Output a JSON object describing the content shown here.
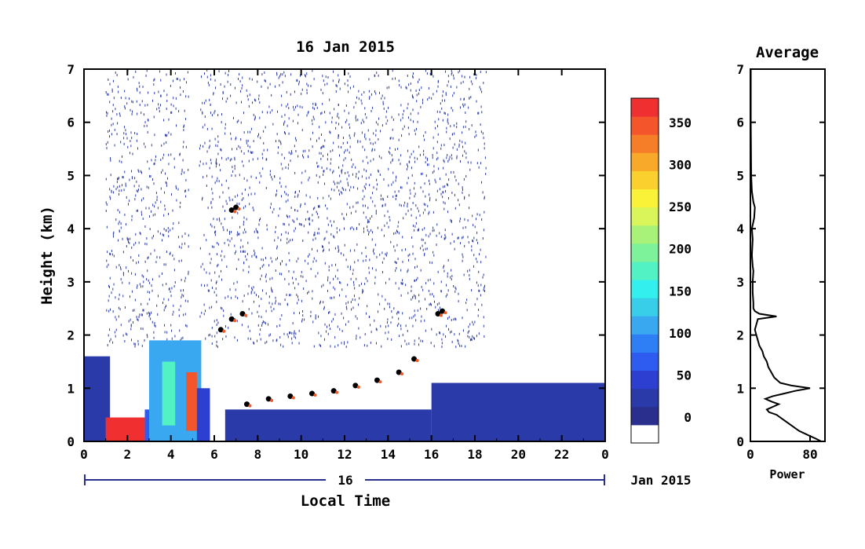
{
  "chart_data": [
    {
      "type": "heatmap",
      "title": "16 Jan 2015",
      "xlabel": "Local Time",
      "ylabel": "Height (km)",
      "x_ticks": [
        "0",
        "2",
        "4",
        "6",
        "8",
        "10",
        "12",
        "14",
        "16",
        "18",
        "20",
        "22",
        "0"
      ],
      "y_ticks": [
        "0",
        "1",
        "2",
        "3",
        "4",
        "5",
        "6",
        "7"
      ],
      "xlim": [
        0,
        24
      ],
      "ylim": [
        0,
        7
      ],
      "date_bar": {
        "day_label": "16",
        "month_label": "Jan 2015"
      },
      "colorbar": {
        "labels": [
          "0",
          "50",
          "100",
          "150",
          "200",
          "250",
          "300",
          "350"
        ],
        "range": [
          -30,
          380
        ],
        "colors": [
          "#ffffff",
          "#2a2e8c",
          "#2a3aa8",
          "#2c3fd0",
          "#2e5cf0",
          "#2e7ff5",
          "#3aa8f0",
          "#38cde8",
          "#33f0ee",
          "#52f2c4",
          "#7ef29a",
          "#a8f27a",
          "#d9f55a",
          "#f9f238",
          "#f9d02e",
          "#f9a92a",
          "#f77e28",
          "#f5552a",
          "#f03030"
        ]
      },
      "regions": [
        {
          "x0": 0.0,
          "x1": 1.2,
          "y0": 0.0,
          "y1": 1.6,
          "v": 20
        },
        {
          "x0": 1.0,
          "x1": 2.8,
          "y0": 0.0,
          "y1": 0.45,
          "v": 360
        },
        {
          "x0": 2.8,
          "x1": 3.3,
          "y0": 0.0,
          "y1": 0.6,
          "v": 60
        },
        {
          "x0": 3.0,
          "x1": 5.4,
          "y0": 0.0,
          "y1": 1.9,
          "v": 110
        },
        {
          "x0": 3.6,
          "x1": 4.2,
          "y0": 0.3,
          "y1": 1.5,
          "v": 180
        },
        {
          "x0": 4.7,
          "x1": 5.2,
          "y0": 0.2,
          "y1": 1.3,
          "v": 340
        },
        {
          "x0": 5.2,
          "x1": 5.8,
          "y0": 0.0,
          "y1": 1.0,
          "v": 40
        },
        {
          "x0": 6.5,
          "x1": 16.0,
          "y0": 0.0,
          "y1": 0.6,
          "v": 20
        },
        {
          "x0": 16.0,
          "x1": 24.0,
          "y0": 0.0,
          "y1": 1.1,
          "v": 20
        }
      ],
      "cloud_layers": [
        {
          "x": [
            7.5,
            8.5,
            9.5,
            10.5,
            11.5,
            12.5,
            13.5,
            14.5,
            15.2
          ],
          "y": [
            0.7,
            0.8,
            0.85,
            0.9,
            0.95,
            1.05,
            1.15,
            1.3,
            1.55
          ]
        },
        {
          "x": [
            6.3,
            6.8,
            7.3
          ],
          "y": [
            2.1,
            2.3,
            2.4
          ]
        },
        {
          "x": [
            6.8,
            7.0
          ],
          "y": [
            4.35,
            4.4
          ]
        },
        {
          "x": [
            16.3,
            16.5
          ],
          "y": [
            2.4,
            2.45
          ]
        }
      ],
      "drizzle_extent": {
        "x": [
          1.0,
          18.5
        ],
        "y": [
          1.8,
          7.0
        ]
      }
    },
    {
      "type": "line",
      "title": "Average",
      "xlabel": "Power",
      "x_ticks": [
        "0",
        "80"
      ],
      "y_ticks": [
        "0",
        "1",
        "2",
        "3",
        "4",
        "5",
        "6",
        "7"
      ],
      "xlim": [
        0,
        100
      ],
      "ylim": [
        0,
        7
      ],
      "series": [
        {
          "y": [
            0,
            0.05,
            0.1,
            0.2,
            0.3,
            0.4,
            0.5,
            0.55,
            0.6,
            0.65,
            0.7,
            0.75,
            0.8,
            0.85,
            0.9,
            0.95,
            1.0,
            1.05,
            1.1,
            1.2,
            1.3,
            1.4,
            1.5,
            1.6,
            1.7,
            1.8,
            1.9,
            2.0,
            2.1,
            2.2,
            2.3,
            2.35,
            2.4,
            2.45,
            2.5,
            2.6,
            2.8,
            3.0,
            3.2,
            3.3,
            3.5,
            3.8,
            4.0,
            4.2,
            4.4,
            4.5,
            4.7,
            5.0,
            6.0,
            7.0
          ],
          "x": [
            95,
            88,
            80,
            65,
            55,
            45,
            35,
            25,
            22,
            30,
            38,
            28,
            20,
            30,
            45,
            60,
            80,
            55,
            40,
            32,
            28,
            24,
            22,
            18,
            16,
            12,
            10,
            8,
            6,
            8,
            10,
            35,
            12,
            6,
            4,
            4,
            3,
            3,
            4,
            3,
            2,
            3,
            2,
            5,
            6,
            4,
            2,
            1,
            0.5,
            0.5
          ]
        }
      ]
    }
  ]
}
